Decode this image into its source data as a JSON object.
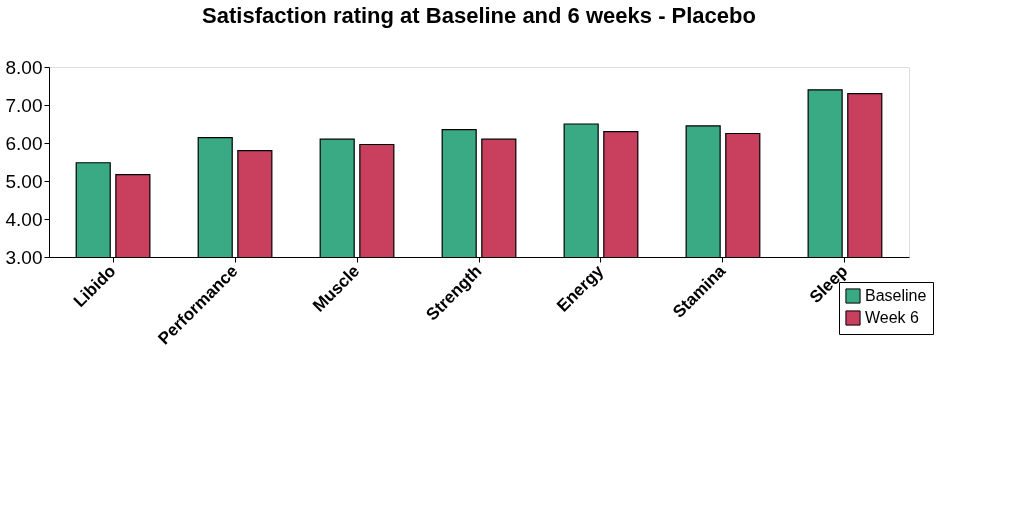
{
  "chart_data": {
    "type": "bar",
    "title": "Satisfaction rating at Baseline and 6 weeks - Placebo",
    "categories": [
      "Libido",
      "Performance",
      "Muscle",
      "Strength",
      "Energy",
      "Stamina",
      "Sleep"
    ],
    "series": [
      {
        "name": "Baseline",
        "color": "#3aaa85",
        "values": [
          5.48,
          6.14,
          6.1,
          6.35,
          6.5,
          6.45,
          7.4
        ]
      },
      {
        "name": "Week 6",
        "color": "#c8405e",
        "values": [
          5.17,
          5.8,
          5.96,
          6.1,
          6.3,
          6.25,
          7.3
        ]
      }
    ],
    "ylim": [
      3,
      8
    ],
    "yticks": [
      {
        "value": 3,
        "label": "3.00"
      },
      {
        "value": 4,
        "label": "4.00"
      },
      {
        "value": 5,
        "label": "5.00"
      },
      {
        "value": 6,
        "label": "6.00"
      },
      {
        "value": 7,
        "label": "7.00"
      },
      {
        "value": 8,
        "label": "8.00"
      }
    ],
    "grid": false,
    "legend": "bottom right"
  }
}
